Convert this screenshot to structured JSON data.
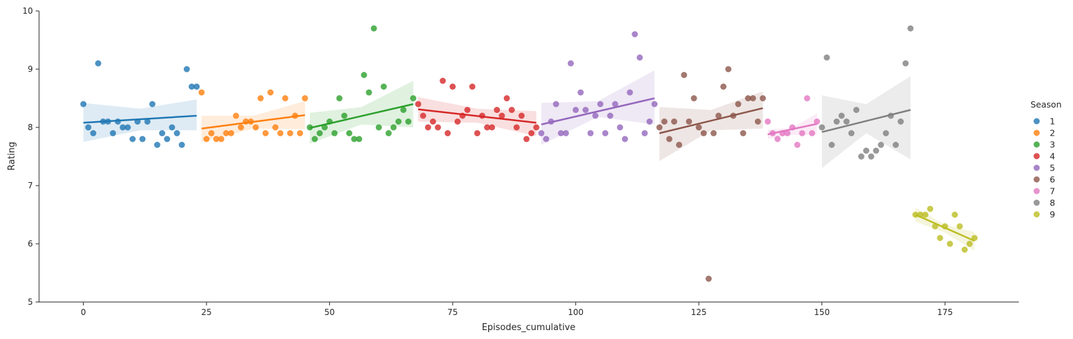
{
  "chart_data": {
    "type": "scatter",
    "xlabel": "Episodes_cumulative",
    "ylabel": "Rating",
    "xlim": [
      -9,
      190
    ],
    "ylim": [
      5,
      10
    ],
    "xticks": [
      0,
      25,
      50,
      75,
      100,
      125,
      150,
      175
    ],
    "yticks": [
      5,
      6,
      7,
      8,
      9,
      10
    ],
    "legend_title": "Season",
    "legend_position": "right",
    "grid": false,
    "series": [
      {
        "name": "1",
        "color": "#1f77b4",
        "points": [
          [
            0,
            8.4
          ],
          [
            1,
            8.0
          ],
          [
            2,
            7.9
          ],
          [
            3,
            9.1
          ],
          [
            4,
            8.1
          ],
          [
            5,
            8.1
          ],
          [
            6,
            7.9
          ],
          [
            7,
            8.1
          ],
          [
            8,
            8.0
          ],
          [
            9,
            8.0
          ],
          [
            10,
            7.8
          ],
          [
            11,
            8.1
          ],
          [
            12,
            7.8
          ],
          [
            13,
            8.1
          ],
          [
            14,
            8.4
          ],
          [
            15,
            7.7
          ],
          [
            16,
            7.9
          ],
          [
            17,
            7.8
          ],
          [
            18,
            8.0
          ],
          [
            19,
            7.9
          ],
          [
            20,
            7.7
          ],
          [
            21,
            9.0
          ],
          [
            22,
            8.7
          ],
          [
            23,
            8.7
          ]
        ],
        "fit": [
          [
            0,
            8.08
          ],
          [
            23,
            8.2
          ]
        ],
        "band": [
          [
            0,
            7.75,
            8.42
          ],
          [
            11.5,
            7.95,
            8.32
          ],
          [
            23,
            7.95,
            8.48
          ]
        ]
      },
      {
        "name": "2",
        "color": "#ff7f0e",
        "points": [
          [
            24,
            8.6
          ],
          [
            25,
            7.8
          ],
          [
            26,
            7.9
          ],
          [
            27,
            7.8
          ],
          [
            28,
            7.8
          ],
          [
            29,
            7.9
          ],
          [
            30,
            7.9
          ],
          [
            31,
            8.2
          ],
          [
            32,
            8.0
          ],
          [
            33,
            8.1
          ],
          [
            34,
            8.1
          ],
          [
            35,
            8.0
          ],
          [
            36,
            8.5
          ],
          [
            37,
            7.9
          ],
          [
            38,
            8.6
          ],
          [
            39,
            8.0
          ],
          [
            40,
            7.9
          ],
          [
            41,
            8.5
          ],
          [
            42,
            7.9
          ],
          [
            43,
            8.2
          ],
          [
            44,
            7.9
          ],
          [
            45,
            8.5
          ]
        ],
        "fit": [
          [
            24,
            7.98
          ],
          [
            45,
            8.21
          ]
        ],
        "band": [
          [
            24,
            7.75,
            8.2
          ],
          [
            34.5,
            7.98,
            8.2
          ],
          [
            45,
            7.97,
            8.45
          ]
        ]
      },
      {
        "name": "3",
        "color": "#2ca02c",
        "points": [
          [
            46,
            8.0
          ],
          [
            47,
            7.8
          ],
          [
            48,
            7.9
          ],
          [
            49,
            8.0
          ],
          [
            50,
            8.1
          ],
          [
            51,
            7.9
          ],
          [
            52,
            8.5
          ],
          [
            53,
            8.2
          ],
          [
            54,
            7.9
          ],
          [
            55,
            7.8
          ],
          [
            56,
            7.8
          ],
          [
            57,
            8.9
          ],
          [
            58,
            8.6
          ],
          [
            59,
            9.7
          ],
          [
            60,
            8.0
          ],
          [
            61,
            8.7
          ],
          [
            62,
            7.9
          ],
          [
            63,
            8.0
          ],
          [
            64,
            8.1
          ],
          [
            65,
            8.3
          ],
          [
            66,
            8.1
          ],
          [
            67,
            8.5
          ]
        ],
        "fit": [
          [
            46,
            7.99
          ],
          [
            67,
            8.4
          ]
        ],
        "band": [
          [
            46,
            7.72,
            8.25
          ],
          [
            56.5,
            8.05,
            8.35
          ],
          [
            67,
            8.0,
            8.8
          ]
        ]
      },
      {
        "name": "4",
        "color": "#d62728",
        "points": [
          [
            68,
            8.4
          ],
          [
            69,
            8.2
          ],
          [
            70,
            8.0
          ],
          [
            71,
            8.1
          ],
          [
            72,
            8.0
          ],
          [
            73,
            8.8
          ],
          [
            74,
            7.9
          ],
          [
            75,
            8.7
          ],
          [
            76,
            8.1
          ],
          [
            77,
            8.2
          ],
          [
            78,
            8.3
          ],
          [
            79,
            8.7
          ],
          [
            80,
            7.9
          ],
          [
            81,
            8.2
          ],
          [
            82,
            8.0
          ],
          [
            83,
            8.0
          ],
          [
            84,
            8.3
          ],
          [
            85,
            8.2
          ],
          [
            86,
            8.5
          ],
          [
            87,
            8.3
          ],
          [
            88,
            8.0
          ],
          [
            89,
            8.2
          ],
          [
            90,
            7.8
          ],
          [
            91,
            7.9
          ],
          [
            92,
            8.0
          ]
        ],
        "fit": [
          [
            68,
            8.31
          ],
          [
            92,
            8.08
          ]
        ],
        "band": [
          [
            68,
            8.1,
            8.52
          ],
          [
            80,
            8.08,
            8.32
          ],
          [
            92,
            7.85,
            8.28
          ]
        ]
      },
      {
        "name": "5",
        "color": "#9467bd",
        "points": [
          [
            93,
            7.9
          ],
          [
            94,
            7.8
          ],
          [
            95,
            8.1
          ],
          [
            96,
            8.4
          ],
          [
            97,
            7.9
          ],
          [
            98,
            7.9
          ],
          [
            99,
            9.1
          ],
          [
            100,
            8.3
          ],
          [
            101,
            8.6
          ],
          [
            102,
            8.3
          ],
          [
            103,
            7.9
          ],
          [
            104,
            8.2
          ],
          [
            105,
            8.4
          ],
          [
            106,
            7.9
          ],
          [
            107,
            8.2
          ],
          [
            108,
            8.4
          ],
          [
            109,
            8.0
          ],
          [
            110,
            7.8
          ],
          [
            111,
            8.6
          ],
          [
            112,
            9.6
          ],
          [
            113,
            9.2
          ],
          [
            114,
            7.9
          ],
          [
            115,
            8.1
          ],
          [
            116,
            8.4
          ]
        ],
        "fit": [
          [
            93,
            8.05
          ],
          [
            116,
            8.5
          ]
        ],
        "band": [
          [
            93,
            7.7,
            8.42
          ],
          [
            104.5,
            8.18,
            8.45
          ],
          [
            116,
            8.05,
            8.98
          ]
        ]
      },
      {
        "name": "6",
        "color": "#8c564b",
        "points": [
          [
            117,
            8.0
          ],
          [
            118,
            8.1
          ],
          [
            119,
            7.8
          ],
          [
            120,
            8.1
          ],
          [
            121,
            7.7
          ],
          [
            122,
            8.9
          ],
          [
            123,
            8.1
          ],
          [
            124,
            8.5
          ],
          [
            125,
            8.0
          ],
          [
            126,
            7.9
          ],
          [
            127,
            5.4
          ],
          [
            128,
            7.9
          ],
          [
            129,
            8.2
          ],
          [
            130,
            8.7
          ],
          [
            131,
            9.0
          ],
          [
            132,
            8.2
          ],
          [
            133,
            8.4
          ],
          [
            134,
            7.9
          ],
          [
            135,
            8.5
          ],
          [
            136,
            8.5
          ],
          [
            137,
            8.1
          ],
          [
            138,
            8.5
          ]
        ],
        "fit": [
          [
            117,
            7.9
          ],
          [
            138,
            8.33
          ]
        ],
        "band": [
          [
            117,
            7.42,
            8.35
          ],
          [
            127.5,
            7.95,
            8.3
          ],
          [
            138,
            7.98,
            8.62
          ]
        ]
      },
      {
        "name": "7",
        "color": "#e377c2",
        "points": [
          [
            139,
            8.1
          ],
          [
            140,
            7.9
          ],
          [
            141,
            7.8
          ],
          [
            142,
            7.9
          ],
          [
            143,
            7.9
          ],
          [
            144,
            8.0
          ],
          [
            145,
            7.7
          ],
          [
            146,
            7.9
          ],
          [
            147,
            8.5
          ],
          [
            148,
            7.9
          ],
          [
            149,
            8.1
          ]
        ],
        "fit": [
          [
            139,
            7.88
          ],
          [
            149,
            8.06
          ]
        ],
        "band": [
          [
            139,
            7.8,
            7.96
          ],
          [
            144,
            7.87,
            7.99
          ],
          [
            149,
            7.87,
            8.24
          ]
        ]
      },
      {
        "name": "8",
        "color": "#7f7f7f",
        "points": [
          [
            150,
            8.0
          ],
          [
            151,
            9.2
          ],
          [
            152,
            7.7
          ],
          [
            153,
            8.1
          ],
          [
            154,
            8.2
          ],
          [
            155,
            8.1
          ],
          [
            156,
            7.9
          ],
          [
            157,
            8.3
          ],
          [
            158,
            7.5
          ],
          [
            159,
            7.6
          ],
          [
            160,
            7.5
          ],
          [
            161,
            7.6
          ],
          [
            162,
            7.7
          ],
          [
            163,
            7.9
          ],
          [
            164,
            8.2
          ],
          [
            165,
            7.7
          ],
          [
            166,
            8.1
          ],
          [
            167,
            9.1
          ],
          [
            168,
            9.7
          ]
        ],
        "fit": [
          [
            150,
            7.92
          ],
          [
            168,
            8.3
          ]
        ],
        "band": [
          [
            150,
            7.3,
            8.55
          ],
          [
            159,
            7.9,
            8.4
          ],
          [
            168,
            7.45,
            8.88
          ]
        ]
      },
      {
        "name": "9",
        "color": "#bcbd22",
        "points": [
          [
            169,
            6.5
          ],
          [
            170,
            6.5
          ],
          [
            171,
            6.5
          ],
          [
            172,
            6.6
          ],
          [
            173,
            6.3
          ],
          [
            174,
            6.1
          ],
          [
            175,
            6.3
          ],
          [
            176,
            6.0
          ],
          [
            177,
            6.5
          ],
          [
            178,
            6.3
          ],
          [
            179,
            5.9
          ],
          [
            180,
            6.0
          ],
          [
            181,
            6.1
          ]
        ],
        "fit": [
          [
            169,
            6.5
          ],
          [
            181,
            6.05
          ]
        ],
        "band": [
          [
            169,
            6.38,
            6.62
          ],
          [
            175,
            6.19,
            6.33
          ],
          [
            181,
            5.88,
            6.2
          ]
        ]
      }
    ]
  }
}
